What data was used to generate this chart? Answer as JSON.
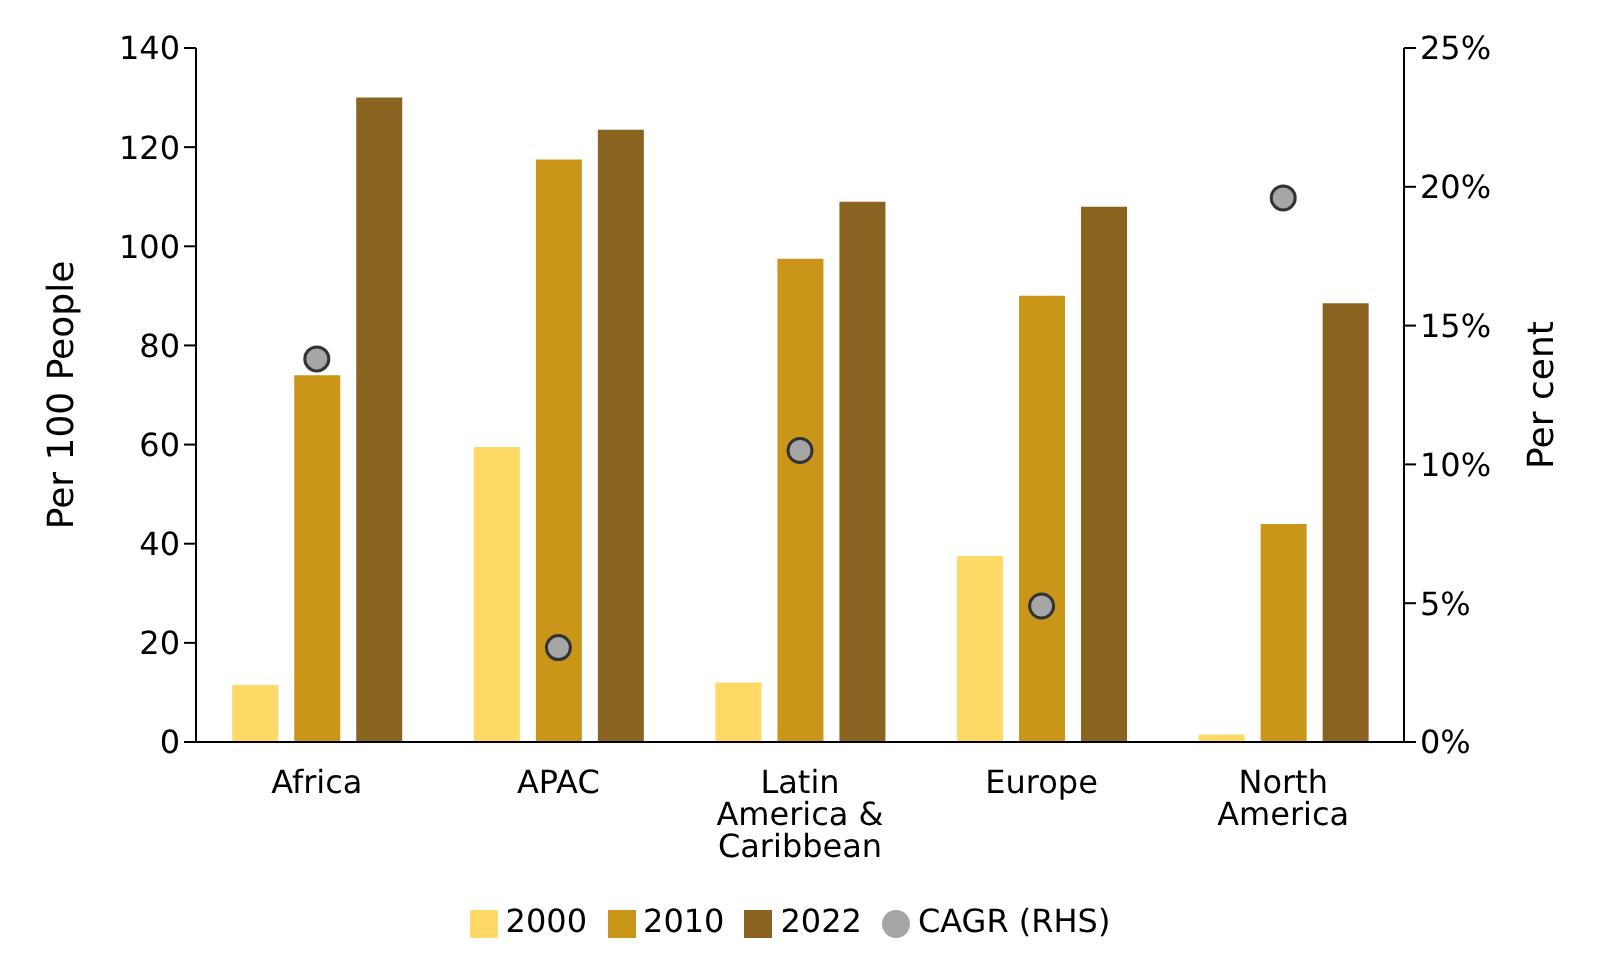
{
  "chart_data": {
    "type": "bar",
    "xlabel": null,
    "ylabel": "Per 100 People",
    "y2label": "Per cent",
    "categories": [
      "Africa",
      "APAC",
      "Latin America & Caribbean",
      "Europe",
      "North America"
    ],
    "series": [
      {
        "name": "2000",
        "color": "#ffd966",
        "values": [
          11.5,
          59.5,
          12,
          37.5,
          1.5
        ]
      },
      {
        "name": "2010",
        "color": "#c9961a",
        "values": [
          74,
          117.5,
          97.5,
          90,
          44
        ]
      },
      {
        "name": "2022",
        "color": "#8b6320",
        "values": [
          130,
          123.5,
          109,
          108,
          88.5
        ]
      },
      {
        "name": "CAGR (RHS)",
        "type": "scatter",
        "axis": "y2",
        "color": "#a6a6a6",
        "marker": "circle",
        "values": [
          13.8,
          3.4,
          10.5,
          4.9,
          19.6
        ]
      }
    ],
    "ylim": [
      0,
      140
    ],
    "yticks": [
      0,
      20,
      40,
      60,
      80,
      100,
      120,
      140
    ],
    "y2lim": [
      0,
      25
    ],
    "y2ticks": [
      {
        "value": 0,
        "label": "0%"
      },
      {
        "value": 5,
        "label": "5%"
      },
      {
        "value": 10,
        "label": "10%"
      },
      {
        "value": 15,
        "label": "15%"
      },
      {
        "value": 20,
        "label": "20%"
      },
      {
        "value": 25,
        "label": "25%"
      }
    ],
    "grid": false,
    "legend": "bottom"
  }
}
